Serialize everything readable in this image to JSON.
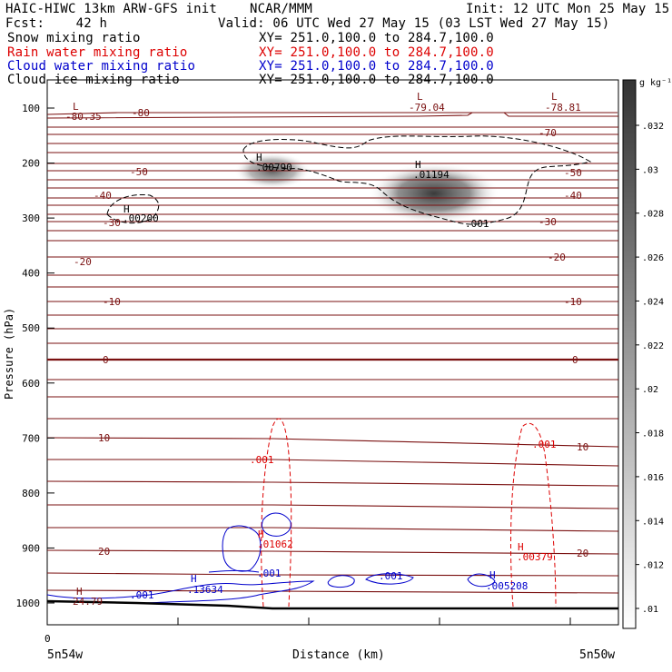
{
  "header": {
    "title": "HAIC-HIWC 13km ARW-GFS init",
    "institution": "NCAR/MMM",
    "init": "Init: 12 UTC Mon 25 May 15",
    "fcst": "Fcst:    42 h",
    "valid": "Valid: 06 UTC Wed 27 May 15 (03 LST Wed 27 May 15)",
    "fields": [
      {
        "name": "Snow mixing ratio",
        "xy": "XY= 251.0,100.0 to 284.7,100.0",
        "color": "#000000"
      },
      {
        "name": "Rain water mixing ratio",
        "xy": "XY= 251.0,100.0 to 284.7,100.0",
        "color": "#dd0000"
      },
      {
        "name": "Cloud water mixing ratio",
        "xy": "XY= 251.0,100.0 to 284.7,100.0",
        "color": "#0000cc"
      },
      {
        "name": "Cloud ice mixing ratio",
        "xy": "XY= 251.0,100.0 to 284.7,100.0",
        "color": "#000000"
      }
    ]
  },
  "chart_data": {
    "type": "cross-section",
    "ylabel": "Pressure (hPa)",
    "xlabel": "Distance (km)",
    "x_left_label": "5n54w",
    "x_right_label": "5n50w",
    "x_zero_tick": "0",
    "y_ticks": [
      100,
      200,
      300,
      400,
      500,
      600,
      700,
      800,
      900,
      1000
    ],
    "ylim": [
      1050,
      50
    ],
    "colorbar": {
      "unit": "g kg⁻¹",
      "ticks": [
        ".01",
        ".012",
        ".014",
        ".016",
        ".018",
        ".02",
        ".022",
        ".024",
        ".026",
        ".028",
        ".03",
        ".032"
      ]
    },
    "temperature_isotherms": {
      "color": "#7a1010",
      "levels": [
        -80,
        -70,
        -60,
        -50,
        -40,
        -30,
        -20,
        -10,
        0,
        10,
        20
      ],
      "labels": [
        {
          "text": "-80",
          "p": 104,
          "side": "left"
        },
        {
          "text": "-70",
          "p": 145,
          "side": "right"
        },
        {
          "text": "-50",
          "p": 195,
          "side": "left"
        },
        {
          "text": "-50",
          "p": 197,
          "side": "right"
        },
        {
          "text": "-40",
          "p": 245,
          "side": "left"
        },
        {
          "text": "-40",
          "p": 245,
          "side": "right"
        },
        {
          "text": "-30",
          "p": 295,
          "side": "left"
        },
        {
          "text": "-30",
          "p": 293,
          "side": "right"
        },
        {
          "text": "-20",
          "p": 375,
          "side": "right"
        },
        {
          "text": "-20",
          "p": 382,
          "side": "left"
        },
        {
          "text": "-10",
          "p": 450,
          "side": "left"
        },
        {
          "text": "-10",
          "p": 450,
          "side": "right"
        },
        {
          "text": "0",
          "p": 556,
          "side": "left"
        },
        {
          "text": "0",
          "p": 556,
          "side": "right"
        },
        {
          "text": "10",
          "p": 712,
          "side": "left"
        },
        {
          "text": "10",
          "p": 718,
          "side": "right"
        },
        {
          "text": "20",
          "p": 901,
          "side": "left"
        },
        {
          "text": "20",
          "p": 903,
          "side": "right"
        }
      ],
      "extrema": [
        {
          "mark": "L",
          "value": "-80.35",
          "p": 100
        },
        {
          "mark": "L",
          "value": "-79.04",
          "p": 105
        },
        {
          "mark": "L",
          "value": "-78.81",
          "p": 105
        },
        {
          "mark": "H",
          "value": "24.79",
          "p": 990
        }
      ]
    },
    "snow_mixing_ratio": {
      "shaded_maxima": [
        {
          "mark": "H",
          "value": ".00790",
          "p": 200
        },
        {
          "mark": "H",
          "value": ".01194",
          "p": 250
        },
        {
          "mark": "H",
          "value": ".00200",
          "p": 290
        }
      ],
      "contour_label": ".001"
    },
    "rain_water_mixing_ratio": {
      "contour_labels": [
        ".001",
        ".001"
      ],
      "maxima": [
        {
          "mark": "H",
          "value": ".01062",
          "p": 895
        },
        {
          "mark": "H",
          "value": ".00379",
          "p": 905
        }
      ]
    },
    "cloud_water_mixing_ratio": {
      "contour_labels": [
        ".001",
        ".001",
        ".001"
      ],
      "maxima": [
        {
          "mark": "H",
          "value": ".13634",
          "p": 980
        },
        {
          "mark": "H",
          "value": ".005208",
          "p": 980
        }
      ]
    }
  }
}
